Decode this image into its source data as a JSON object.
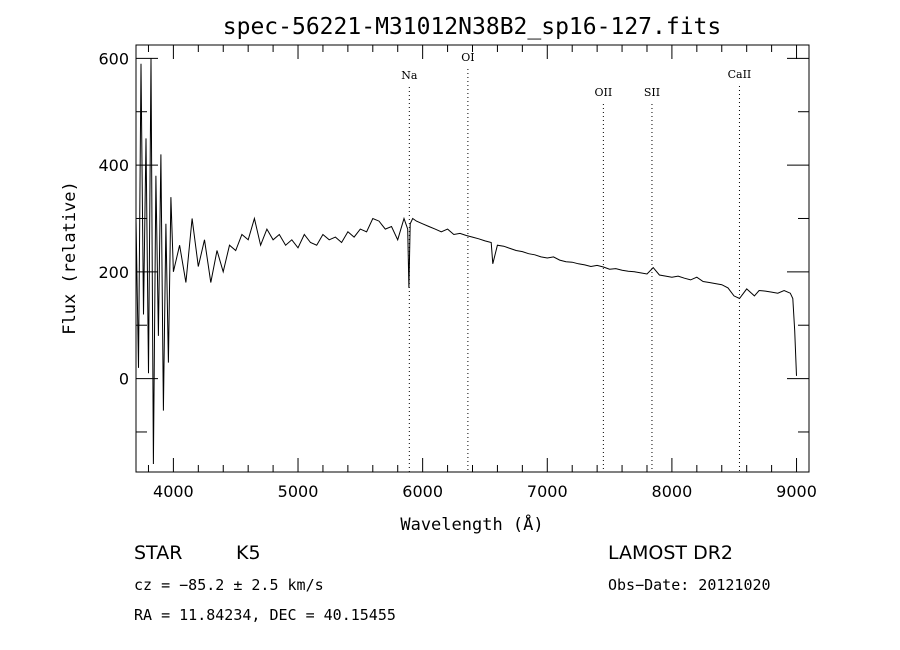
{
  "chart_data": {
    "type": "line",
    "title": "spec-56221-M31012N38B2_sp16-127.fits",
    "xlabel": "Wavelength (Å)",
    "ylabel": "Flux (relative)",
    "xlim": [
      3700,
      9100
    ],
    "ylim": [
      -175,
      625
    ],
    "x_ticks": [
      4000,
      5000,
      6000,
      7000,
      8000,
      9000
    ],
    "y_ticks": [
      0,
      200,
      400,
      600
    ],
    "grid": false,
    "series": [
      {
        "x": [
          3700,
          3720,
          3740,
          3760,
          3780,
          3800,
          3820,
          3840,
          3860,
          3880,
          3900,
          3920,
          3940,
          3960,
          3980,
          4000,
          4050,
          4100,
          4150,
          4200,
          4250,
          4300,
          4350,
          4400,
          4450,
          4500,
          4550,
          4600,
          4650,
          4700,
          4750,
          4800,
          4850,
          4900,
          4950,
          5000,
          5050,
          5100,
          5150,
          5200,
          5250,
          5300,
          5350,
          5400,
          5450,
          5500,
          5550,
          5600,
          5650,
          5700,
          5750,
          5800,
          5850,
          5880,
          5890,
          5900,
          5920,
          5950,
          6000,
          6050,
          6100,
          6150,
          6200,
          6250,
          6300,
          6350,
          6400,
          6450,
          6500,
          6550,
          6563,
          6600,
          6650,
          6700,
          6750,
          6800,
          6850,
          6900,
          6950,
          7000,
          7050,
          7100,
          7150,
          7200,
          7250,
          7300,
          7350,
          7400,
          7450,
          7500,
          7550,
          7600,
          7650,
          7700,
          7750,
          7800,
          7850,
          7900,
          7950,
          8000,
          8050,
          8100,
          8150,
          8200,
          8250,
          8300,
          8350,
          8400,
          8450,
          8498,
          8542,
          8600,
          8662,
          8700,
          8750,
          8800,
          8850,
          8900,
          8950,
          8970,
          8985,
          9000
        ],
        "y": [
          300,
          20,
          590,
          120,
          450,
          10,
          600,
          -160,
          380,
          80,
          420,
          -60,
          290,
          30,
          340,
          200,
          250,
          180,
          300,
          210,
          260,
          180,
          240,
          200,
          250,
          240,
          270,
          260,
          300,
          250,
          280,
          260,
          270,
          250,
          260,
          245,
          270,
          255,
          250,
          270,
          260,
          265,
          255,
          275,
          265,
          280,
          275,
          300,
          295,
          280,
          285,
          260,
          300,
          280,
          170,
          290,
          300,
          295,
          290,
          285,
          280,
          275,
          280,
          270,
          272,
          268,
          265,
          262,
          258,
          255,
          215,
          250,
          248,
          244,
          240,
          238,
          234,
          232,
          228,
          226,
          228,
          222,
          219,
          218,
          215,
          213,
          210,
          212,
          209,
          205,
          206,
          203,
          201,
          200,
          198,
          196,
          208,
          194,
          192,
          190,
          192,
          188,
          185,
          190,
          182,
          180,
          178,
          176,
          170,
          155,
          150,
          168,
          155,
          165,
          164,
          162,
          160,
          165,
          160,
          150,
          90,
          5
        ]
      }
    ],
    "lines": [
      {
        "label": "Na",
        "x": 5893
      },
      {
        "label": "OI",
        "x": 6363
      },
      {
        "label": "OII",
        "x": 7450
      },
      {
        "label": "SII",
        "x": 7840
      },
      {
        "label": "CaII",
        "x": 8542
      }
    ]
  },
  "info": {
    "obj_class": "STAR",
    "subclass": "K5",
    "survey": "LAMOST DR2",
    "cz": "cz = −85.2 ± 2.5 km/s",
    "obs_date": "Obs−Date: 20121020",
    "coords": "RA =  11.84234, DEC =  40.15455"
  }
}
